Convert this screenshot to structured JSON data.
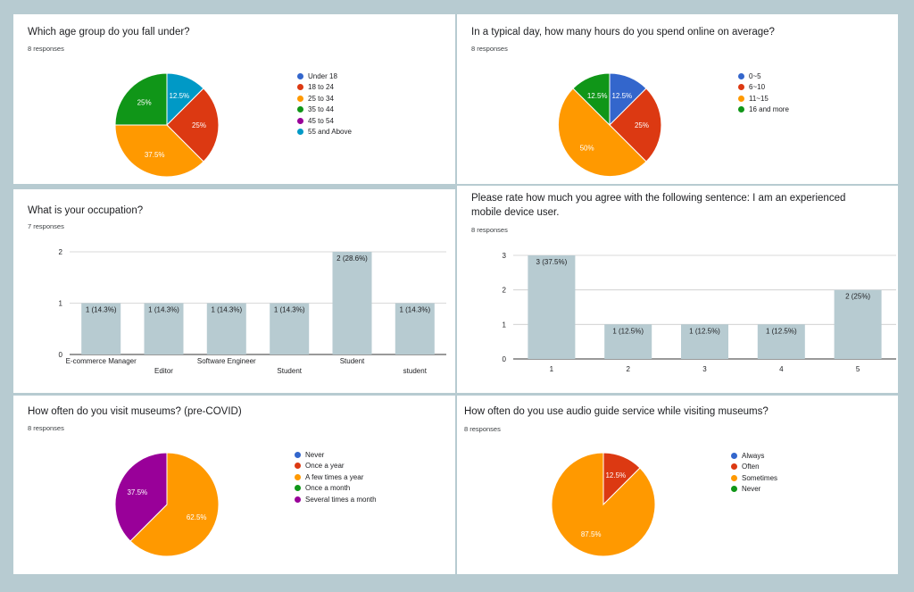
{
  "colors": {
    "blue": "#3366cc",
    "red": "#dc3912",
    "orange": "#ff9900",
    "green": "#109618",
    "purple": "#990099",
    "teal": "#0099c6",
    "bar": "#b7cbd1"
  },
  "chart_data": [
    {
      "type": "pie",
      "title": "Which age group do you fall under?",
      "responses": "8 responses",
      "legend": [
        "Under 18",
        "18 to 24",
        "25 to 34",
        "35 to 44",
        "45 to 54",
        "55 and Above"
      ],
      "legend_colors": [
        "#3366cc",
        "#dc3912",
        "#ff9900",
        "#109618",
        "#990099",
        "#0099c6"
      ],
      "slices": [
        {
          "label": "55 and Above",
          "value": 12.5,
          "color": "#0099c6",
          "text": "12.5%"
        },
        {
          "label": "18 to 24",
          "value": 25,
          "color": "#dc3912",
          "text": "25%"
        },
        {
          "label": "25 to 34",
          "value": 37.5,
          "color": "#ff9900",
          "text": "37.5%"
        },
        {
          "label": "35 to 44",
          "value": 25,
          "color": "#109618",
          "text": "25%"
        }
      ]
    },
    {
      "type": "pie",
      "title": "In a typical day, how many hours do you spend online on average?",
      "responses": "8 responses",
      "legend": [
        "0~5",
        "6~10",
        "11~15",
        "16 and more"
      ],
      "legend_colors": [
        "#3366cc",
        "#dc3912",
        "#ff9900",
        "#109618"
      ],
      "slices": [
        {
          "label": "0~5",
          "value": 12.5,
          "color": "#3366cc",
          "text": "12.5%"
        },
        {
          "label": "6~10",
          "value": 25,
          "color": "#dc3912",
          "text": "25%"
        },
        {
          "label": "11~15",
          "value": 50,
          "color": "#ff9900",
          "text": "50%"
        },
        {
          "label": "16 and more",
          "value": 12.5,
          "color": "#109618",
          "text": "12.5%"
        }
      ]
    },
    {
      "type": "bar",
      "title": "What is your occupation?",
      "responses": "7 responses",
      "categories": [
        "E-commerce Manager",
        "Editor",
        "Software Engineer",
        "Student",
        "Student",
        "student"
      ],
      "values": [
        1,
        1,
        1,
        1,
        2,
        1
      ],
      "data_labels": [
        "1 (14.3%)",
        "1 (14.3%)",
        "1 (14.3%)",
        "1 (14.3%)",
        "2 (28.6%)",
        "1 (14.3%)"
      ],
      "yticks": [
        0,
        1,
        2
      ],
      "ylim": [
        0,
        2
      ]
    },
    {
      "type": "bar",
      "title": "Please rate how much you agree with the following sentence: I am an experienced mobile device user.",
      "responses": "8 responses",
      "categories": [
        "1",
        "2",
        "3",
        "4",
        "5"
      ],
      "values": [
        3,
        1,
        1,
        1,
        2
      ],
      "data_labels": [
        "3 (37.5%)",
        "1 (12.5%)",
        "1 (12.5%)",
        "1 (12.5%)",
        "2 (25%)"
      ],
      "yticks": [
        0,
        1,
        2,
        3
      ],
      "ylim": [
        0,
        3
      ]
    },
    {
      "type": "pie",
      "title": "How often do you visit museums? (pre-COVID)",
      "responses": "8 responses",
      "legend": [
        "Never",
        "Once a year",
        "A few times a year",
        "Once a month",
        "Several times a month"
      ],
      "legend_colors": [
        "#3366cc",
        "#dc3912",
        "#ff9900",
        "#109618",
        "#990099"
      ],
      "slices": [
        {
          "label": "A few times a year",
          "value": 62.5,
          "color": "#ff9900",
          "text": "62.5%"
        },
        {
          "label": "Several times a month",
          "value": 37.5,
          "color": "#990099",
          "text": "37.5%"
        }
      ]
    },
    {
      "type": "pie",
      "title": "How often do you use audio guide service while visiting museums?",
      "responses": "8 responses",
      "legend": [
        "Always",
        "Often",
        "Sometimes",
        "Never"
      ],
      "legend_colors": [
        "#3366cc",
        "#dc3912",
        "#ff9900",
        "#109618"
      ],
      "slices": [
        {
          "label": "Often",
          "value": 12.5,
          "color": "#dc3912",
          "text": "12.5%"
        },
        {
          "label": "Sometimes",
          "value": 87.5,
          "color": "#ff9900",
          "text": "87.5%"
        }
      ]
    }
  ]
}
